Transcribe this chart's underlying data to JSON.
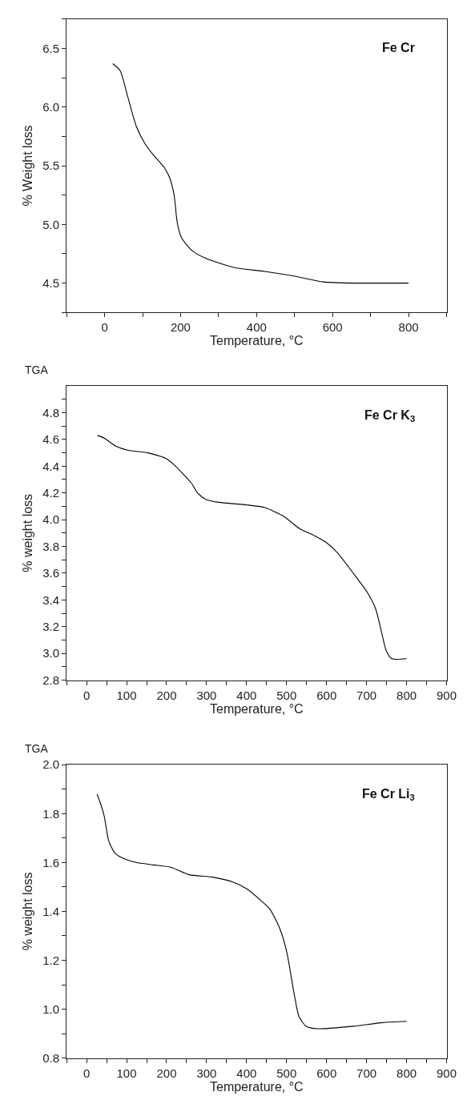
{
  "chart_data": [
    {
      "type": "line",
      "xlabel": "Temperature, °C",
      "ylabel": "% Weight loss",
      "annotations": [
        "Fe Cr"
      ],
      "xlim": [
        -100,
        900
      ],
      "ylim": [
        4.25,
        6.75
      ],
      "xticks": [
        {
          "value": -100,
          "label": null
        },
        0,
        {
          "value": 100,
          "label": null
        },
        200,
        {
          "value": 300,
          "label": null
        },
        400,
        {
          "value": 500,
          "label": null
        },
        600,
        {
          "value": 700,
          "label": null
        },
        800,
        {
          "value": 900,
          "label": null
        }
      ],
      "yticks": [
        {
          "value": 4.25,
          "label": null
        },
        4.5,
        {
          "value": 4.75,
          "label": null
        },
        {
          "value": 5,
          "label": "5.0"
        },
        {
          "value": 5.25,
          "label": null
        },
        5.5,
        {
          "value": 5.75,
          "label": null
        },
        {
          "value": 6,
          "label": "6.0"
        },
        {
          "value": 6.25,
          "label": null
        },
        6.5,
        {
          "value": 6.75,
          "label": null
        }
      ],
      "series": [
        {
          "color": "#000000",
          "x": [
            21.5,
            41,
            60,
            83,
            106,
            129,
            156,
            171,
            183,
            191,
            202,
            229,
            267,
            344,
            421,
            498,
            575,
            652,
            729,
            800
          ],
          "values": [
            6.37,
            6.31,
            6.1,
            5.84,
            5.69,
            5.59,
            5.49,
            5.4,
            5.25,
            5.02,
            4.89,
            4.78,
            4.71,
            4.63,
            4.6,
            4.56,
            4.51,
            4.5,
            4.5,
            4.5
          ]
        }
      ]
    },
    {
      "type": "line",
      "title": "TGA",
      "xlabel": "Temperature, °C",
      "ylabel": "% weight loss",
      "annotations": [
        "Fe Cr K$_{3}$"
      ],
      "xlim": [
        -50,
        900
      ],
      "ylim": [
        2.8,
        5.0
      ],
      "xticks": [
        {
          "value": -50,
          "label": null
        },
        0,
        {
          "value": 50,
          "label": null
        },
        100,
        {
          "value": 150,
          "label": null
        },
        200,
        {
          "value": 250,
          "label": null
        },
        300,
        {
          "value": 350,
          "label": null
        },
        400,
        {
          "value": 450,
          "label": null
        },
        500,
        {
          "value": 550,
          "label": null
        },
        600,
        {
          "value": 650,
          "label": null
        },
        700,
        {
          "value": 750,
          "label": null
        },
        800,
        {
          "value": 850,
          "label": null
        },
        900
      ],
      "yticks": [
        2.8,
        {
          "value": 2.9,
          "label": null
        },
        {
          "value": 3,
          "label": "3.0"
        },
        {
          "value": 3.1,
          "label": null
        },
        3.2,
        {
          "value": 3.3,
          "label": null
        },
        3.4,
        {
          "value": 3.5,
          "label": null
        },
        3.6,
        {
          "value": 3.7,
          "label": null
        },
        3.8,
        {
          "value": 3.9,
          "label": null
        },
        {
          "value": 4,
          "label": "4.0"
        },
        {
          "value": 4.1,
          "label": null
        },
        4.2,
        {
          "value": 4.3,
          "label": null
        },
        4.4,
        {
          "value": 4.5,
          "label": null
        },
        4.6,
        {
          "value": 4.7,
          "label": null
        },
        4.8,
        {
          "value": 4.9,
          "label": null
        }
      ],
      "series": [
        {
          "color": "#000000",
          "x": [
            27,
            44,
            73,
            102,
            153,
            197,
            219,
            248,
            263,
            277,
            299,
            329,
            402,
            446,
            490,
            534,
            570,
            599,
            628,
            664,
            701,
            723,
            738,
            749,
            763,
            800
          ],
          "values": [
            4.63,
            4.61,
            4.55,
            4.52,
            4.5,
            4.46,
            4.41,
            4.32,
            4.27,
            4.2,
            4.15,
            4.13,
            4.11,
            4.09,
            4.03,
            3.93,
            3.88,
            3.83,
            3.75,
            3.61,
            3.46,
            3.33,
            3.15,
            3.02,
            2.96,
            2.96
          ]
        }
      ]
    },
    {
      "type": "line",
      "title": "TGA",
      "xlabel": "Temperature, °C",
      "ylabel": "% weight loss",
      "annotations": [
        "Fe Cr Li$_{3}$"
      ],
      "xlim": [
        -50,
        900
      ],
      "ylim": [
        0.8,
        2.0
      ],
      "xticks": [
        {
          "value": -50,
          "label": null
        },
        0,
        {
          "value": 50,
          "label": null
        },
        100,
        {
          "value": 150,
          "label": null
        },
        200,
        {
          "value": 250,
          "label": null
        },
        300,
        {
          "value": 350,
          "label": null
        },
        400,
        {
          "value": 450,
          "label": null
        },
        500,
        {
          "value": 550,
          "label": null
        },
        600,
        {
          "value": 650,
          "label": null
        },
        700,
        {
          "value": 750,
          "label": null
        },
        800,
        {
          "value": 850,
          "label": null
        },
        900
      ],
      "yticks": [
        0.8,
        {
          "value": 0.9,
          "label": null
        },
        {
          "value": 1,
          "label": "1.0"
        },
        {
          "value": 1.1,
          "label": null
        },
        1.2,
        {
          "value": 1.3,
          "label": null
        },
        1.4,
        {
          "value": 1.5,
          "label": null
        },
        1.6,
        {
          "value": 1.7,
          "label": null
        },
        1.8,
        {
          "value": 1.9,
          "label": null
        },
        {
          "value": 2,
          "label": "2.0"
        }
      ],
      "series": [
        {
          "color": "#000000",
          "x": [
            26,
            33,
            44,
            55,
            70,
            88,
            124,
            168,
            212,
            256,
            315,
            366,
            403,
            432,
            458,
            483,
            501,
            516,
            531,
            549,
            578,
            666,
            739,
            800
          ],
          "values": [
            1.88,
            1.85,
            1.79,
            1.69,
            1.64,
            1.62,
            1.6,
            1.59,
            1.58,
            1.55,
            1.54,
            1.52,
            1.49,
            1.45,
            1.41,
            1.33,
            1.23,
            1.09,
            0.97,
            0.93,
            0.92,
            0.93,
            0.945,
            0.95
          ]
        }
      ]
    }
  ]
}
